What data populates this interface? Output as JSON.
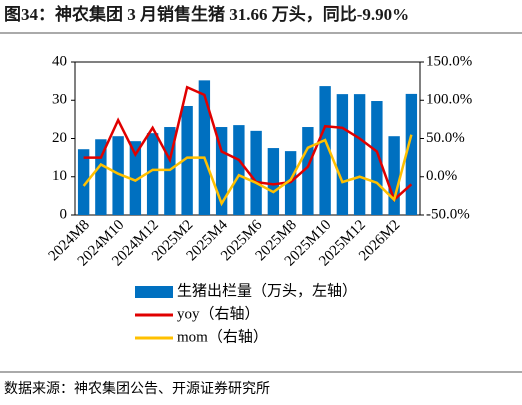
{
  "chart_data": {
    "type": "bar-line",
    "title": "图34：神农集团 3 月销售生猪 31.66 万头，同比-9.90%",
    "categories": [
      "2024M8",
      null,
      "2024M10",
      null,
      "2024M12",
      null,
      "2025M2",
      null,
      "2025M4",
      null,
      "2025M6",
      null,
      "2025M8",
      null,
      "2025M10",
      null,
      "2025M12",
      null,
      "2026M2",
      null
    ],
    "series": [
      {
        "name": "生猪出栏量（万头，左轴）",
        "type": "bar",
        "color": "#0070c0",
        "values": [
          17.2,
          19.8,
          20.6,
          19.3,
          21.4,
          23.0,
          28.5,
          35.2,
          23.0,
          23.5,
          22.0,
          17.5,
          16.7,
          23.0,
          33.7,
          31.6,
          31.6,
          29.8,
          20.6,
          31.66
        ]
      },
      {
        "name": "yoy（右轴）",
        "type": "line",
        "axis": "y2",
        "color": "#e00000",
        "values": [
          25,
          25,
          74,
          29,
          64,
          22,
          117,
          107,
          33,
          22,
          -7,
          -10,
          -7,
          13,
          66,
          64,
          50,
          33,
          -30,
          -9.9
        ]
      },
      {
        "name": "mom（右轴）",
        "type": "line",
        "axis": "y2",
        "color": "#ffc000",
        "values": [
          -12,
          16,
          4,
          -5,
          9,
          9,
          25,
          25,
          -35,
          2,
          -8,
          -20,
          -4,
          38,
          48,
          -7,
          0,
          -8,
          -30,
          55
        ]
      }
    ],
    "ylim": [
      0,
      40
    ],
    "yticks": [
      0,
      10,
      20,
      30,
      40
    ],
    "y2lim": [
      -50,
      150
    ],
    "y2ticks": [
      {
        "value": -50,
        "label": "-50.0%"
      },
      {
        "value": 0,
        "label": "0.0%"
      },
      {
        "value": 50,
        "label": "50.0%"
      },
      {
        "value": 100,
        "label": "100.0%"
      },
      {
        "value": 150,
        "label": "150.0%"
      }
    ],
    "source": "数据来源：神农集团公告、开源证券研究所"
  }
}
